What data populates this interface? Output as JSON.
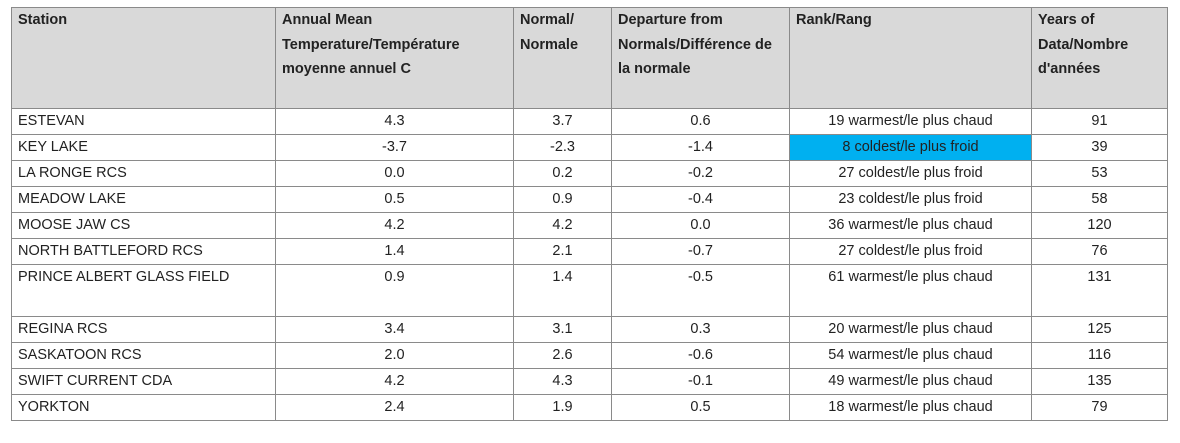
{
  "table": {
    "headers": [
      "Station",
      "Annual Mean Temperature/Température moyenne annuel C",
      "Normal/ Normale",
      "Departure from Normals/Différence de la normale",
      "Rank/Rang",
      "Years of Data/Nombre d'années"
    ],
    "rows": [
      [
        "ESTEVAN",
        "4.3",
        "3.7",
        "0.6",
        "19 warmest/le plus chaud",
        "91"
      ],
      [
        "KEY LAKE",
        "-3.7",
        "-2.3",
        "-1.4",
        "8 coldest/le plus froid",
        "39"
      ],
      [
        "LA RONGE RCS",
        "0.0",
        "0.2",
        "-0.2",
        "27 coldest/le plus froid",
        "53"
      ],
      [
        "MEADOW LAKE",
        "0.5",
        "0.9",
        "-0.4",
        "23 coldest/le plus froid",
        "58"
      ],
      [
        "MOOSE JAW CS",
        "4.2",
        "4.2",
        "0.0",
        "36 warmest/le plus chaud",
        "120"
      ],
      [
        "NORTH BATTLEFORD RCS",
        "1.4",
        "2.1",
        "-0.7",
        "27 coldest/le plus froid",
        "76"
      ],
      [
        "PRINCE ALBERT GLASS FIELD",
        "0.9",
        "1.4",
        "-0.5",
        "61 warmest/le plus chaud",
        "131"
      ],
      [
        "REGINA RCS",
        "3.4",
        "3.1",
        "0.3",
        "20 warmest/le plus chaud",
        "125"
      ],
      [
        "SASKATOON RCS",
        "2.0",
        "2.6",
        "-0.6",
        "54 warmest/le plus chaud",
        "116"
      ],
      [
        "SWIFT CURRENT CDA",
        "4.2",
        "4.3",
        "-0.1",
        "49 warmest/le plus chaud",
        "135"
      ],
      [
        "YORKTON",
        "2.4",
        "1.9",
        "0.5",
        "18 warmest/le plus chaud",
        "79"
      ]
    ],
    "highlight": {
      "row": 1,
      "col": 4,
      "color": "#00b0f0"
    },
    "header_background": "#d9d9d9"
  }
}
